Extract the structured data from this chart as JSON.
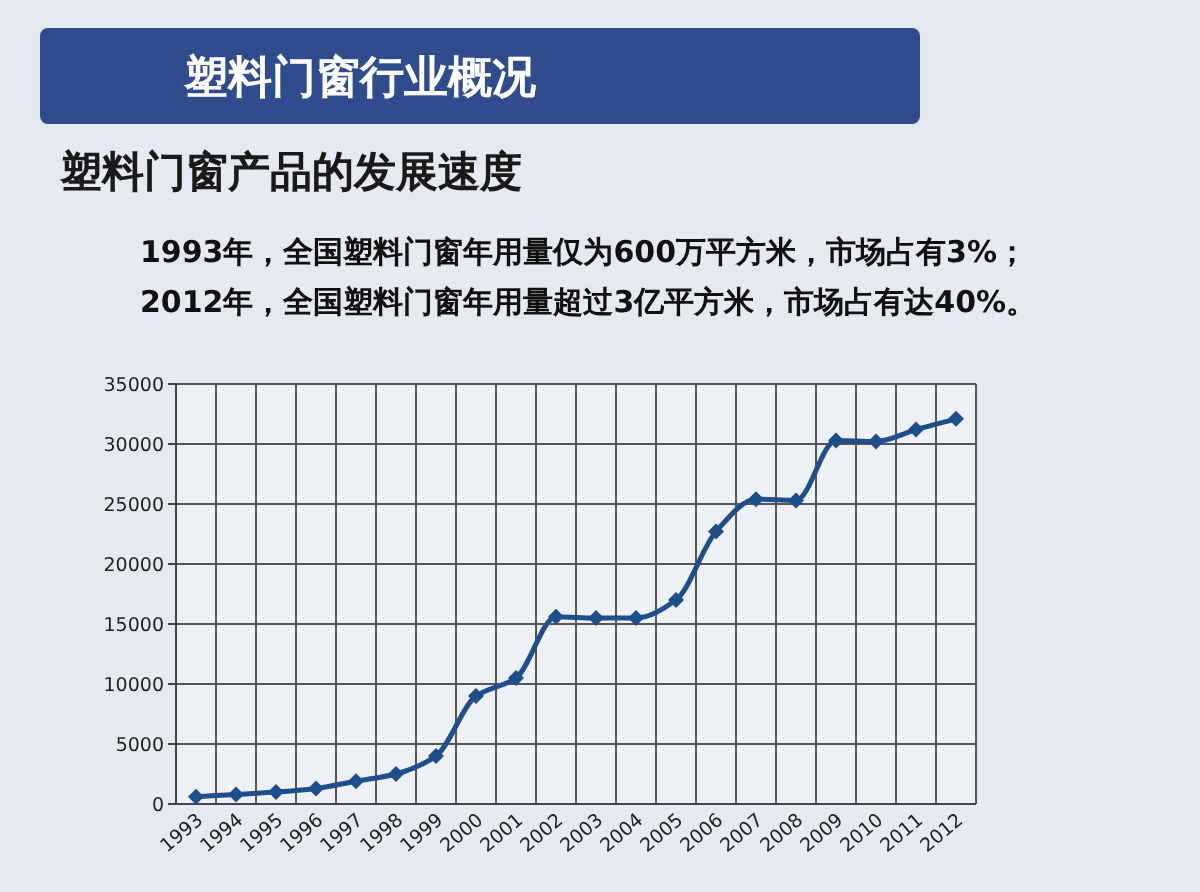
{
  "chart_data": {
    "type": "line",
    "title": "塑料门窗行业概况",
    "subtitle": "塑料门窗产品的发展速度",
    "annotations": [
      "1993年，全国塑料门窗年用量仅为600万平方米，市场占有3%；",
      "2012年，全国塑料门窗年用量超过3亿平方米，市场占有达40%。"
    ],
    "categories": [
      "1993",
      "1994",
      "1995",
      "1996",
      "1997",
      "1998",
      "1999",
      "2000",
      "2001",
      "2002",
      "2003",
      "2004",
      "2005",
      "2006",
      "2007",
      "2008",
      "2009",
      "2010",
      "2011",
      "2012"
    ],
    "series": [
      {
        "color": "#1f4e8c",
        "values": [
          600,
          800,
          1000,
          1300,
          1900,
          2500,
          4000,
          9000,
          10500,
          15600,
          15500,
          15500,
          17000,
          22700,
          25400,
          25300,
          30300,
          30200,
          31200,
          32100
        ]
      }
    ],
    "ylim": [
      0,
      35000
    ],
    "yticks": [
      0,
      5000,
      10000,
      15000,
      20000,
      25000,
      30000,
      35000
    ],
    "grid": true,
    "marker": "diamond",
    "line_style": "solid"
  }
}
